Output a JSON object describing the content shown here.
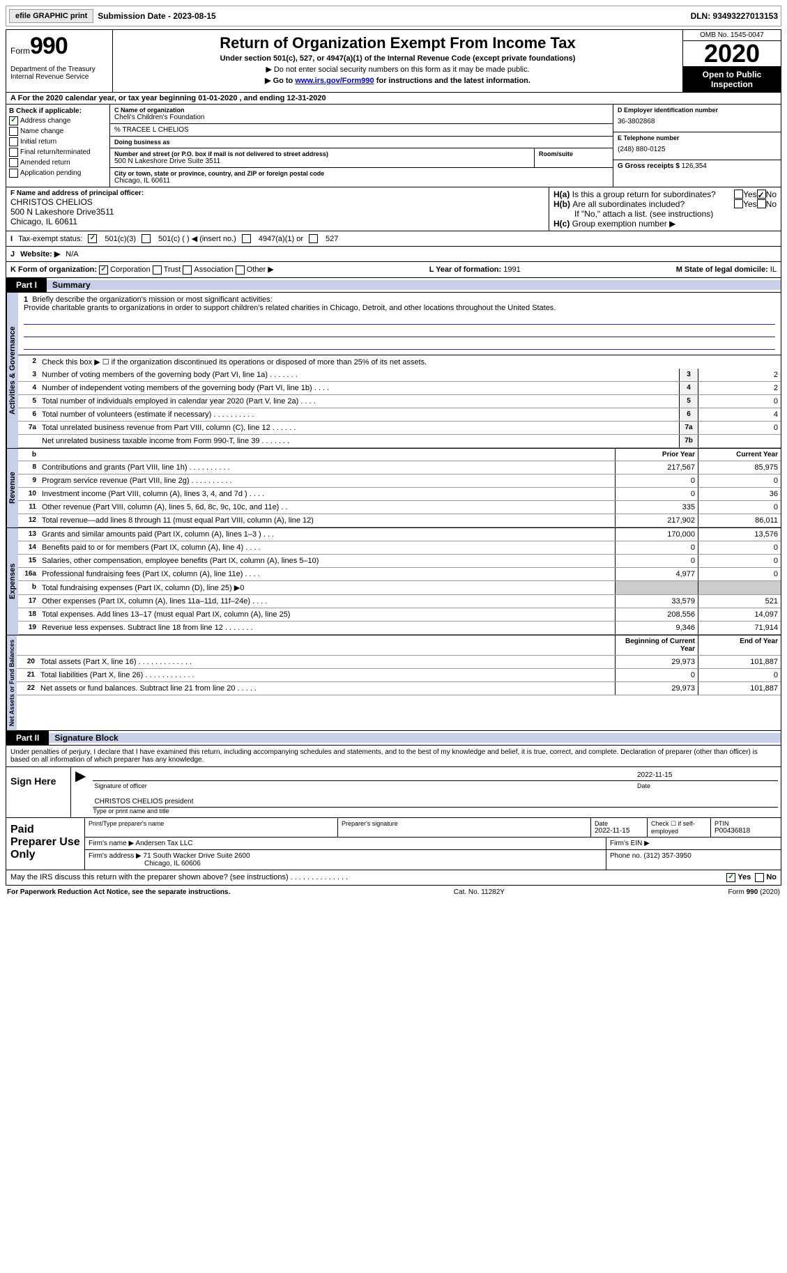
{
  "top": {
    "efile": "efile GRAPHIC print",
    "submission": "Submission Date - 2023-08-15",
    "dln": "DLN: 93493227013153"
  },
  "header": {
    "form_label": "Form",
    "form_num": "990",
    "dept": "Department of the Treasury\nInternal Revenue Service",
    "title": "Return of Organization Exempt From Income Tax",
    "sub": "Under section 501(c), 527, or 4947(a)(1) of the Internal Revenue Code (except private foundations)",
    "note1": "▶ Do not enter social security numbers on this form as it may be made public.",
    "note2_pre": "▶ Go to ",
    "note2_link": "www.irs.gov/Form990",
    "note2_post": " for instructions and the latest information.",
    "omb": "OMB No. 1545-0047",
    "year": "2020",
    "inspection": "Open to Public Inspection"
  },
  "period": "For the 2020 calendar year, or tax year beginning 01-01-2020   , and ending 12-31-2020",
  "boxB": {
    "hdr": "B Check if applicable:",
    "addr_change": "Address change",
    "name_change": "Name change",
    "initial": "Initial return",
    "final": "Final return/terminated",
    "amended": "Amended return",
    "app_pending": "Application pending"
  },
  "boxC": {
    "name_lbl": "C Name of organization",
    "name": "Cheli's Children's Foundation",
    "care_of": "% TRACEE L CHELIOS",
    "dba_lbl": "Doing business as",
    "dba": "",
    "addr_lbl": "Number and street (or P.O. box if mail is not delivered to street address)",
    "addr": "500 N Lakeshore Drive Suite 3511",
    "room_lbl": "Room/suite",
    "city_lbl": "City or town, state or province, country, and ZIP or foreign postal code",
    "city": "Chicago, IL  60611"
  },
  "boxD": {
    "ein_lbl": "D Employer identification number",
    "ein": "36-3802868",
    "tel_lbl": "E Telephone number",
    "tel": "(248) 880-0125",
    "gross_lbl": "G Gross receipts $",
    "gross": "126,354"
  },
  "boxF": {
    "lbl": "F Name and address of principal officer:",
    "name": "CHRISTOS CHELIOS",
    "addr": "500 N Lakeshore Drive3511",
    "city": "Chicago, IL  60611"
  },
  "boxH": {
    "a": "Is this a group return for subordinates?",
    "b": "Are all subordinates included?",
    "note": "If \"No,\" attach a list. (see instructions)",
    "c": "Group exemption number ▶",
    "yes": "Yes",
    "no": "No"
  },
  "taxExempt": {
    "lbl": "Tax-exempt status:",
    "c3": "501(c)(3)",
    "c": "501(c) (  ) ◀ (insert no.)",
    "a1": "4947(a)(1) or",
    "s527": "527"
  },
  "website": {
    "lbl": "Website: ▶",
    "val": "N/A"
  },
  "kRow": {
    "lbl": "K Form of organization:",
    "corp": "Corporation",
    "trust": "Trust",
    "assoc": "Association",
    "other": "Other ▶",
    "year_lbl": "L Year of formation:",
    "year_val": "1991",
    "state_lbl": "M State of legal domicile:",
    "state_val": "IL"
  },
  "part1": {
    "label": "Part I",
    "title": "Summary",
    "mission_lbl": "Briefly describe the organization's mission or most significant activities:",
    "mission": "Provide charitable grants to organizations in order to support children's related charities in Chicago, Detroit, and other locations throughout the United States.",
    "line2": "Check this box ▶ ☐ if the organization discontinued its operations or disposed of more than 25% of its net assets.",
    "vert1": "Activities & Governance",
    "vert2": "Revenue",
    "vert3": "Expenses",
    "vert4": "Net Assets or Fund Balances",
    "prior": "Prior Year",
    "current": "Current Year",
    "begin": "Beginning of Current Year",
    "end": "End of Year",
    "lines_gov": [
      {
        "n": "3",
        "d": "Number of voting members of the governing body (Part VI, line 1a)  .  .  .  .  .  .  .",
        "b": "3",
        "v": "2"
      },
      {
        "n": "4",
        "d": "Number of independent voting members of the governing body (Part VI, line 1b)  .  .  .  .",
        "b": "4",
        "v": "2"
      },
      {
        "n": "5",
        "d": "Total number of individuals employed in calendar year 2020 (Part V, line 2a)  .  .  .  .",
        "b": "5",
        "v": "0"
      },
      {
        "n": "6",
        "d": "Total number of volunteers (estimate if necessary)  .  .  .  .  .  .  .  .  .  .",
        "b": "6",
        "v": "4"
      },
      {
        "n": "7a",
        "d": "Total unrelated business revenue from Part VIII, column (C), line 12  .  .  .  .  .  .",
        "b": "7a",
        "v": "0"
      },
      {
        "n": "",
        "d": "Net unrelated business taxable income from Form 990-T, line 39  .  .  .  .  .  .  .",
        "b": "7b",
        "v": ""
      }
    ],
    "lines_rev": [
      {
        "n": "8",
        "d": "Contributions and grants (Part VIII, line 1h)  .  .  .  .  .  .  .  .  .  .",
        "p": "217,567",
        "c": "85,975"
      },
      {
        "n": "9",
        "d": "Program service revenue (Part VIII, line 2g)  .  .  .  .  .  .  .  .  .  .",
        "p": "0",
        "c": "0"
      },
      {
        "n": "10",
        "d": "Investment income (Part VIII, column (A), lines 3, 4, and 7d )  .  .  .  .",
        "p": "0",
        "c": "36"
      },
      {
        "n": "11",
        "d": "Other revenue (Part VIII, column (A), lines 5, 6d, 8c, 9c, 10c, and 11e)  .  .",
        "p": "335",
        "c": "0"
      },
      {
        "n": "12",
        "d": "Total revenue—add lines 8 through 11 (must equal Part VIII, column (A), line 12)",
        "p": "217,902",
        "c": "86,011"
      }
    ],
    "lines_exp": [
      {
        "n": "13",
        "d": "Grants and similar amounts paid (Part IX, column (A), lines 1–3 )  .  .  .",
        "p": "170,000",
        "c": "13,576"
      },
      {
        "n": "14",
        "d": "Benefits paid to or for members (Part IX, column (A), line 4)  .  .  .  .",
        "p": "0",
        "c": "0"
      },
      {
        "n": "15",
        "d": "Salaries, other compensation, employee benefits (Part IX, column (A), lines 5–10)",
        "p": "0",
        "c": "0"
      },
      {
        "n": "16a",
        "d": "Professional fundraising fees (Part IX, column (A), line 11e)  .  .  .  .",
        "p": "4,977",
        "c": "0"
      },
      {
        "n": "b",
        "d": "Total fundraising expenses (Part IX, column (D), line 25) ▶0",
        "p": "",
        "c": "",
        "gray": true
      },
      {
        "n": "17",
        "d": "Other expenses (Part IX, column (A), lines 11a–11d, 11f–24e)  .  .  .  .",
        "p": "33,579",
        "c": "521"
      },
      {
        "n": "18",
        "d": "Total expenses. Add lines 13–17 (must equal Part IX, column (A), line 25)",
        "p": "208,556",
        "c": "14,097"
      },
      {
        "n": "19",
        "d": "Revenue less expenses. Subtract line 18 from line 12  .  .  .  .  .  .  .",
        "p": "9,346",
        "c": "71,914"
      }
    ],
    "lines_net": [
      {
        "n": "20",
        "d": "Total assets (Part X, line 16)  .  .  .  .  .  .  .  .  .  .  .  .  .",
        "p": "29,973",
        "c": "101,887"
      },
      {
        "n": "21",
        "d": "Total liabilities (Part X, line 26)  .  .  .  .  .  .  .  .  .  .  .  .",
        "p": "0",
        "c": "0"
      },
      {
        "n": "22",
        "d": "Net assets or fund balances. Subtract line 21 from line 20  .  .  .  .  .",
        "p": "29,973",
        "c": "101,887"
      }
    ]
  },
  "part2": {
    "label": "Part II",
    "title": "Signature Block",
    "penalty": "Under penalties of perjury, I declare that I have examined this return, including accompanying schedules and statements, and to the best of my knowledge and belief, it is true, correct, and complete. Declaration of preparer (other than officer) is based on all information of which preparer has any knowledge."
  },
  "sign": {
    "here": "Sign Here",
    "sig_lbl": "Signature of officer",
    "date_lbl": "Date",
    "date": "2022-11-15",
    "name": "CHRISTOS CHELIOS president",
    "type_lbl": "Type or print name and title"
  },
  "paid": {
    "label": "Paid Preparer Use Only",
    "print_lbl": "Print/Type preparer's name",
    "sig_lbl": "Preparer's signature",
    "date_lbl": "Date",
    "date": "2022-11-15",
    "check_lbl": "Check ☐ if self-employed",
    "ptin_lbl": "PTIN",
    "ptin": "P00436818",
    "firm_name_lbl": "Firm's name   ▶",
    "firm_name": "Andersen Tax LLC",
    "firm_ein_lbl": "Firm's EIN ▶",
    "firm_addr_lbl": "Firm's address ▶",
    "firm_addr": "71 South Wacker Drive Suite 2600",
    "firm_city": "Chicago, IL  60606",
    "phone_lbl": "Phone no.",
    "phone": "(312) 357-3950"
  },
  "discuss": {
    "q": "May the IRS discuss this return with the preparer shown above? (see instructions)  .  .  .  .  .  .  .  .  .  .  .  .  .  .",
    "yes": "Yes",
    "no": "No"
  },
  "footer": {
    "pra": "For Paperwork Reduction Act Notice, see the separate instructions.",
    "cat": "Cat. No. 11282Y",
    "form": "Form 990 (2020)"
  }
}
